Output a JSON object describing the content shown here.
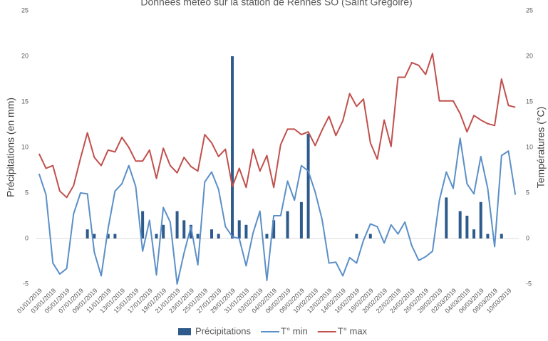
{
  "chart_data": {
    "type": "bar_line",
    "title": "Données météo sur la station de Rennes SO (Saint Grégoire)",
    "y_label": "Précipitations (en mm)",
    "y2_label": "Températures (°C)",
    "categories": [
      "01/01/2019",
      null,
      "03/01/2019",
      null,
      "05/01/2019",
      null,
      "07/01/2019",
      null,
      "09/01/2019",
      null,
      "11/01/2019",
      null,
      "13/01/2019",
      null,
      "15/01/2019",
      null,
      "17/01/2019",
      null,
      "19/01/2019",
      null,
      "21/01/2019",
      null,
      "23/01/2019",
      null,
      "25/01/2019",
      null,
      "27/01/2019",
      null,
      "29/01/2019",
      null,
      "31/01/2019",
      null,
      "02/02/2019",
      null,
      "04/02/2019",
      null,
      "06/02/2019",
      null,
      "08/02/2019",
      null,
      "10/02/2019",
      null,
      "12/02/2019",
      null,
      "14/02/2019",
      null,
      "16/02/2019",
      null,
      "18/02/2019",
      null,
      "20/02/2019",
      null,
      "22/02/2019",
      null,
      "24/02/2019",
      null,
      "26/02/2019",
      null,
      "28/02/2019",
      null,
      "02/03/2019",
      null,
      "04/03/2019",
      null,
      "06/03/2019",
      null,
      "08/03/2019",
      null,
      "10/03/2019",
      null
    ],
    "series": [
      {
        "name": "Précipitations",
        "kind": "bar",
        "color": "#2e5b8c",
        "values": [
          0,
          0,
          0,
          0,
          0,
          0,
          0,
          1,
          0.5,
          0,
          0.5,
          0.5,
          0,
          0,
          0,
          3,
          0,
          0.5,
          1.5,
          0,
          3,
          2,
          1.5,
          0.5,
          0,
          1,
          0.5,
          0,
          20,
          2,
          1.5,
          0,
          0,
          0.5,
          2,
          0,
          3,
          0,
          4,
          11.5,
          0,
          0,
          0,
          0,
          0,
          0,
          0.5,
          0,
          0.5,
          0,
          0,
          0,
          0,
          0,
          0,
          0,
          0,
          0,
          0,
          4.5,
          0,
          3,
          2.5,
          1,
          4,
          0.5,
          0,
          0.5,
          0,
          0
        ]
      },
      {
        "name": "T° min",
        "kind": "line",
        "axis": "y2",
        "color": "#5b8fc7",
        "values": [
          7.1,
          4.8,
          -2.7,
          -3.9,
          -3.3,
          2.7,
          5,
          4.9,
          -1.5,
          -4.1,
          1.1,
          5.2,
          6,
          8,
          5.7,
          -1.4,
          2,
          -4,
          3.4,
          1.8,
          -5,
          -1.6,
          1.3,
          -2.9,
          6.2,
          7.3,
          5.4,
          1.3,
          0.2,
          0,
          -3,
          0.6,
          3,
          -4.6,
          2.5,
          2.5,
          6.3,
          4.2,
          8,
          7.4,
          5.1,
          2.1,
          -2.7,
          -2.6,
          -4.1,
          -2.1,
          -2.7,
          -0.2,
          1.6,
          1.3,
          -0.5,
          1.5,
          0.5,
          1.8,
          -0.8,
          -2.4,
          -2,
          -1.4,
          4.2,
          7.3,
          5.5,
          11,
          6,
          4.9,
          9,
          5.5,
          -0.9,
          9.1,
          9.6,
          4.8
        ]
      },
      {
        "name": "T° max",
        "kind": "line",
        "axis": "y2",
        "color": "#c0504d",
        "values": [
          9.3,
          7.7,
          8,
          5.2,
          4.5,
          5.8,
          8.8,
          11.6,
          8.9,
          8,
          9.7,
          9.5,
          11.1,
          10,
          8.5,
          8.5,
          9.7,
          6.6,
          9.9,
          8,
          7.2,
          8.9,
          7.9,
          7.4,
          11.4,
          10.5,
          9,
          9.8,
          5.7,
          7.7,
          5.6,
          9.8,
          7.4,
          9.1,
          5.6,
          10.3,
          12,
          12,
          11.4,
          11.7,
          10.2,
          11.9,
          13.4,
          11.3,
          12.9,
          15.9,
          14.5,
          15.3,
          10.5,
          8.7,
          13,
          10.1,
          17.7,
          17.7,
          19.3,
          19,
          18,
          20.3,
          15.1,
          15.1,
          15.1,
          13.7,
          11.7,
          13.5,
          13,
          12.6,
          12.4,
          17.5,
          14.6,
          14.4
        ]
      }
    ],
    "ylim": [
      -5,
      25
    ],
    "yticks": [
      -5,
      0,
      5,
      10,
      15,
      20,
      25
    ],
    "y2lim": [
      -5,
      25
    ],
    "y2ticks": [
      -5,
      0,
      5,
      10,
      15,
      20,
      25
    ],
    "legend": "bottom"
  }
}
